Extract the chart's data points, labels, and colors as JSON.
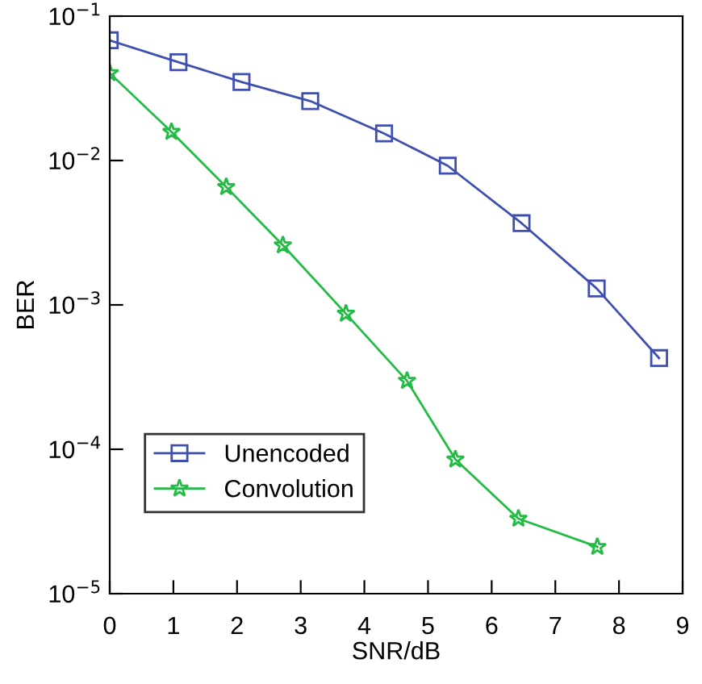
{
  "chart_data": {
    "type": "line",
    "xlabel": "SNR/dB",
    "ylabel": "BER",
    "log": "y",
    "grid": false,
    "legend": "bottom left",
    "xlim": [
      0,
      9
    ],
    "xticks": [
      0,
      1,
      2,
      3,
      4,
      5,
      6,
      7,
      8,
      9
    ],
    "ylim": [
      1e-05,
      0.1
    ],
    "yticks": [
      {
        "value": 1e-05,
        "label": "10$^{−5}$"
      },
      {
        "value": 0.0001,
        "label": "10$^{−4}$"
      },
      {
        "value": 0.001,
        "label": "10$^{−3}$"
      },
      {
        "value": 0.01,
        "label": "10$^{−2}$"
      },
      {
        "value": 0.1,
        "label": "10$^{−1}$"
      }
    ],
    "series": [
      {
        "name": "Unencoded",
        "color": "#3f4fb0",
        "marker": "square",
        "x": [
          0.0,
          1.08,
          2.07,
          3.15,
          4.31,
          5.31,
          6.47,
          7.65,
          8.63
        ],
        "values": [
          0.068,
          0.048,
          0.035,
          0.0258,
          0.0154,
          0.0092,
          0.00368,
          0.0013,
          0.000428
        ]
      },
      {
        "name": "Convolution",
        "color": "#22bb44",
        "marker": "star",
        "x": [
          0.0,
          0.97,
          1.83,
          2.72,
          3.71,
          4.67,
          5.43,
          6.42,
          7.66
        ],
        "values": [
          0.0403,
          0.0158,
          0.00655,
          0.00259,
          0.00087,
          0.000298,
          8.51e-05,
          3.31e-05,
          2.11e-05
        ]
      }
    ]
  }
}
